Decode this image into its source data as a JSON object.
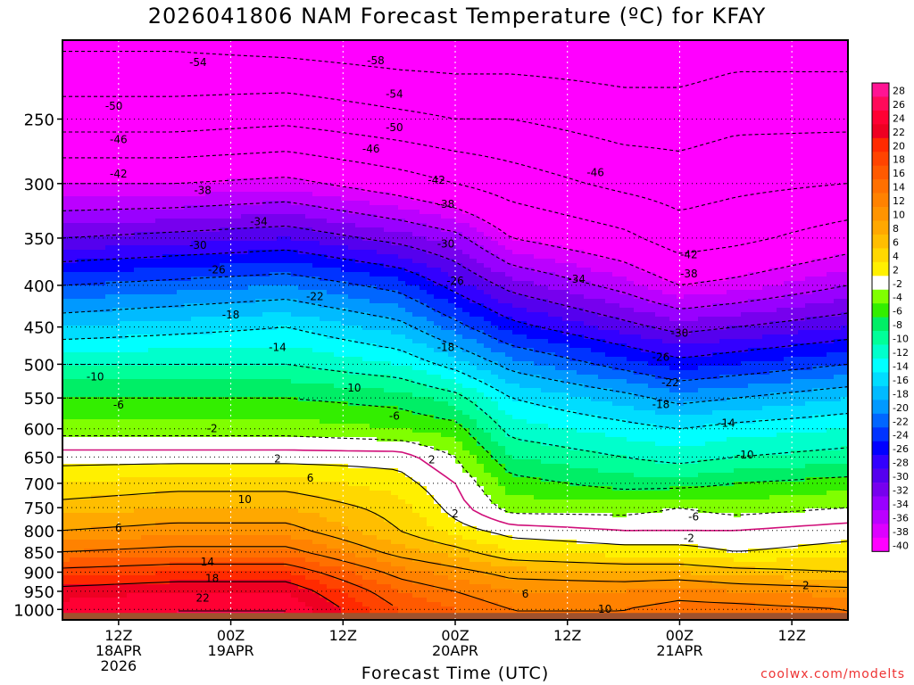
{
  "chart_data": {
    "type": "heatmap",
    "title": "2026041806 NAM Forecast Temperature (ºC) for KFAY",
    "xlabel": "Forecast Time (UTC)",
    "ylabel": "",
    "credit": "coolwx.com/modelts",
    "y_axis": {
      "scale": "log",
      "range_hPa": [
        1030,
        200
      ],
      "ticks": [
        250,
        300,
        350,
        400,
        450,
        500,
        550,
        600,
        650,
        700,
        750,
        800,
        850,
        900,
        950,
        1000
      ]
    },
    "x_axis": {
      "range_hours_after_init": [
        0,
        84
      ],
      "ticks": [
        {
          "hour": 6,
          "label": [
            "12Z",
            "18APR",
            "2026"
          ]
        },
        {
          "hour": 18,
          "label": [
            "00Z",
            "19APR"
          ]
        },
        {
          "hour": 30,
          "label": [
            "12Z"
          ]
        },
        {
          "hour": 42,
          "label": [
            "00Z",
            "20APR"
          ]
        },
        {
          "hour": 54,
          "label": [
            "12Z"
          ]
        },
        {
          "hour": 66,
          "label": [
            "00Z",
            "21APR"
          ]
        },
        {
          "hour": 78,
          "label": [
            "12Z"
          ]
        }
      ]
    },
    "grid": true,
    "colorbar": {
      "placement": "right",
      "labels": [
        "28",
        "26",
        "24",
        "22",
        "20",
        "18",
        "16",
        "14",
        "12",
        "10",
        "8",
        "6",
        "4",
        "2",
        "-2",
        "-4",
        "-6",
        "-8",
        "-10",
        "-12",
        "-14",
        "-16",
        "-18",
        "-20",
        "-22",
        "-24",
        "-26",
        "-28",
        "-30",
        "-32",
        "-34",
        "-36",
        "-38",
        "-40"
      ],
      "colors": [
        "#ff1493",
        "#ff0a5a",
        "#ff0033",
        "#ee0022",
        "#ff2a00",
        "#ff4400",
        "#ff5a00",
        "#ff7000",
        "#ff8200",
        "#ff9400",
        "#ffa800",
        "#ffbe00",
        "#ffd800",
        "#fff000",
        "#ffffff",
        "#80ff00",
        "#33ee00",
        "#00ee66",
        "#00ff99",
        "#00ffcc",
        "#00ffff",
        "#00ddff",
        "#00bbff",
        "#0099ff",
        "#0066ff",
        "#0033ff",
        "#0000ff",
        "#3300ff",
        "#5500ee",
        "#7700ee",
        "#9900ff",
        "#bb00ff",
        "#dd00ff",
        "#ff00ff"
      ]
    },
    "profile_hours": [
      0,
      12,
      24,
      36,
      42,
      48,
      60,
      66,
      72,
      84
    ],
    "profile_levels_hPa": [
      1000,
      950,
      900,
      850,
      800,
      750,
      700,
      650,
      600,
      550,
      500,
      450,
      400,
      350,
      300,
      250,
      200
    ],
    "temperature_C": [
      [
        25,
        23,
        19,
        14,
        10,
        7,
        4,
        1,
        -3,
        -6,
        -10,
        -16,
        -22,
        -30,
        -38,
        -48,
        -55
      ],
      [
        26,
        24,
        20,
        15,
        11,
        8,
        5,
        1,
        -3,
        -6,
        -10,
        -15,
        -21,
        -29,
        -38,
        -48,
        -55
      ],
      [
        26,
        24,
        20,
        15,
        11,
        8,
        5,
        1,
        -3,
        -6,
        -10,
        -14,
        -20,
        -28,
        -37,
        -47,
        -56
      ],
      [
        18,
        16,
        13,
        9,
        6,
        5,
        3,
        1,
        -4,
        -7,
        -12,
        -17,
        -23,
        -31,
        -40,
        -49,
        -57
      ],
      [
        16,
        14,
        11,
        7,
        3,
        1,
        0,
        -2,
        -5,
        -9,
        -15,
        -21,
        -27,
        -33,
        -42,
        -50,
        -57
      ],
      [
        14,
        12,
        9,
        4,
        1,
        -3,
        -5,
        -8,
        -11,
        -14,
        -19,
        -25,
        -31,
        -38,
        -44,
        -50,
        -57
      ],
      [
        14,
        12,
        8,
        3,
        0,
        -3,
        -7,
        -10,
        -13,
        -17,
        -23,
        -29,
        -35,
        -41,
        -47,
        -52,
        -57
      ],
      [
        15,
        13,
        8,
        3,
        0,
        -2,
        -7,
        -11,
        -14,
        -19,
        -25,
        -31,
        -38,
        -44,
        -48,
        -52,
        -57
      ],
      [
        15,
        12,
        7,
        2,
        0,
        -3,
        -6,
        -10,
        -13,
        -18,
        -24,
        -30,
        -37,
        -43,
        -47,
        -51,
        -56
      ],
      [
        14,
        11,
        6,
        3,
        1,
        -2,
        -5,
        -9,
        -12,
        -16,
        -22,
        -28,
        -34,
        -40,
        -46,
        -51,
        -56
      ]
    ],
    "contour_labels": [
      {
        "value": "-54",
        "hour": 14.5,
        "p": 213
      },
      {
        "value": "-58",
        "hour": 33.5,
        "p": 212
      },
      {
        "value": "-54",
        "hour": 35.5,
        "p": 233
      },
      {
        "value": "-50",
        "hour": 5.5,
        "p": 241
      },
      {
        "value": "-50",
        "hour": 35.5,
        "p": 256
      },
      {
        "value": "-46",
        "hour": 6,
        "p": 265
      },
      {
        "value": "-46",
        "hour": 33,
        "p": 272
      },
      {
        "value": "-46",
        "hour": 57,
        "p": 291
      },
      {
        "value": "-42",
        "hour": 6,
        "p": 292
      },
      {
        "value": "-42",
        "hour": 40,
        "p": 297
      },
      {
        "value": "-38",
        "hour": 15,
        "p": 306
      },
      {
        "value": "-38",
        "hour": 41,
        "p": 318
      },
      {
        "value": "-34",
        "hour": 21,
        "p": 334
      },
      {
        "value": "-30",
        "hour": 14.5,
        "p": 357
      },
      {
        "value": "-30",
        "hour": 41,
        "p": 356
      },
      {
        "value": "-42",
        "hour": 67,
        "p": 367
      },
      {
        "value": "-26",
        "hour": 16.5,
        "p": 383
      },
      {
        "value": "-38",
        "hour": 67,
        "p": 387
      },
      {
        "value": "-34",
        "hour": 55,
        "p": 393
      },
      {
        "value": "-26",
        "hour": 42,
        "p": 395
      },
      {
        "value": "-22",
        "hour": 27,
        "p": 413
      },
      {
        "value": "-18",
        "hour": 18,
        "p": 435
      },
      {
        "value": "-30",
        "hour": 66,
        "p": 458
      },
      {
        "value": "-14",
        "hour": 23,
        "p": 477
      },
      {
        "value": "-18",
        "hour": 41,
        "p": 477
      },
      {
        "value": "-26",
        "hour": 64,
        "p": 490
      },
      {
        "value": "-10",
        "hour": 3.5,
        "p": 518
      },
      {
        "value": "-22",
        "hour": 65,
        "p": 527
      },
      {
        "value": "-10",
        "hour": 31,
        "p": 535
      },
      {
        "value": "-6",
        "hour": 6,
        "p": 561
      },
      {
        "value": "-18",
        "hour": 64,
        "p": 560
      },
      {
        "value": "-6",
        "hour": 35.5,
        "p": 579
      },
      {
        "value": "-14",
        "hour": 71,
        "p": 591
      },
      {
        "value": "-2",
        "hour": 16,
        "p": 600
      },
      {
        "value": "-10",
        "hour": 73,
        "p": 646
      },
      {
        "value": "2",
        "hour": 23,
        "p": 653
      },
      {
        "value": "2",
        "hour": 39.5,
        "p": 655
      },
      {
        "value": "6",
        "hour": 26.5,
        "p": 690
      },
      {
        "value": "10",
        "hour": 19.5,
        "p": 733
      },
      {
        "value": "2",
        "hour": 42,
        "p": 763
      },
      {
        "value": "-6",
        "hour": 67.5,
        "p": 770
      },
      {
        "value": "6",
        "hour": 6,
        "p": 794
      },
      {
        "value": "-2",
        "hour": 67,
        "p": 818
      },
      {
        "value": "14",
        "hour": 15.5,
        "p": 874
      },
      {
        "value": "2",
        "hour": 79.5,
        "p": 935
      },
      {
        "value": "18",
        "hour": 16,
        "p": 916
      },
      {
        "value": "6",
        "hour": 49.5,
        "p": 957
      },
      {
        "value": "22",
        "hour": 15,
        "p": 968
      },
      {
        "value": "10",
        "hour": 58,
        "p": 999
      }
    ]
  }
}
